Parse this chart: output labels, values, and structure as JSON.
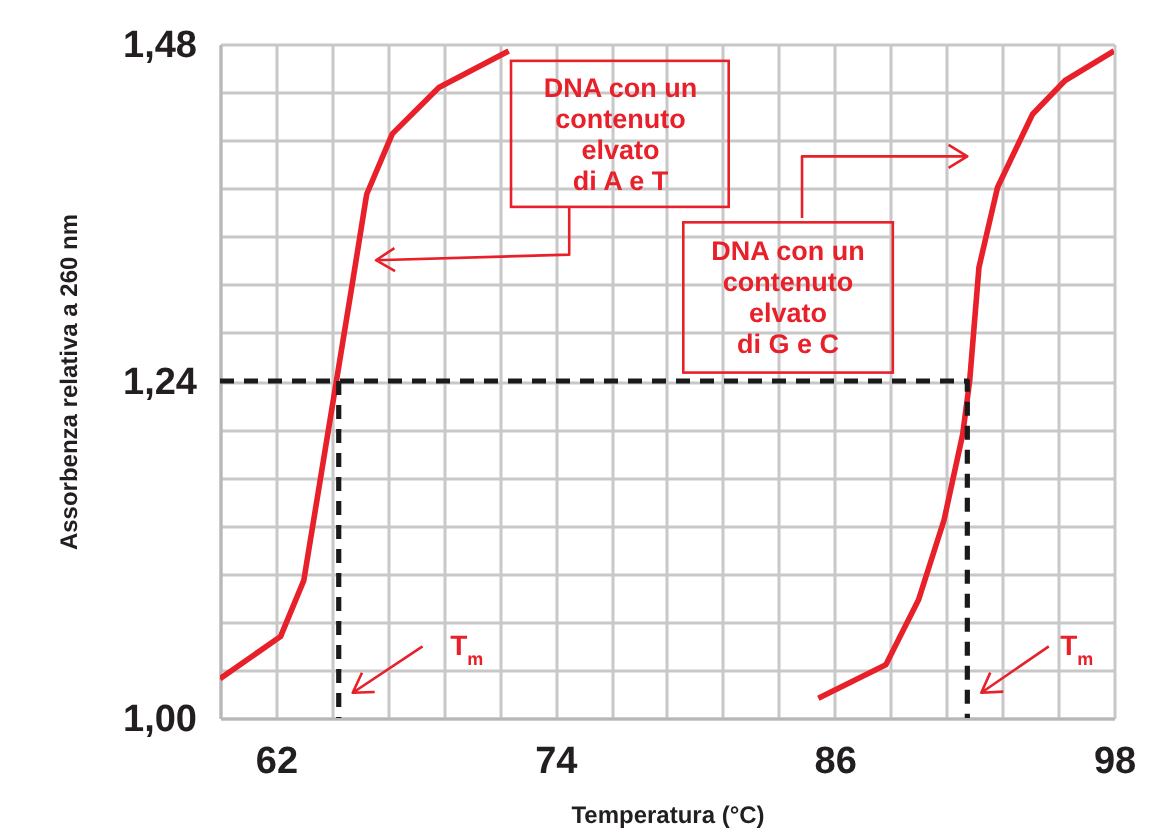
{
  "chart_data": {
    "type": "line",
    "xlabel": "Temperatura (°C)",
    "ylabel": "Assorbenza relativa a 260 nm",
    "xlim": [
      59.6,
      98
    ],
    "ylim": [
      1.0,
      1.48
    ],
    "xticks": [
      {
        "value": 59.6,
        "label": null
      },
      62,
      {
        "value": 64.4,
        "label": null
      },
      {
        "value": 66.8,
        "label": null
      },
      {
        "value": 69.2,
        "label": null
      },
      {
        "value": 71.6,
        "label": null
      },
      74,
      {
        "value": 76.4,
        "label": null
      },
      {
        "value": 78.8,
        "label": null
      },
      {
        "value": 81.2,
        "label": null
      },
      {
        "value": 83.6,
        "label": null
      },
      86,
      {
        "value": 88.4,
        "label": null
      },
      {
        "value": 90.8,
        "label": null
      },
      {
        "value": 93.2,
        "label": null
      },
      {
        "value": 95.6,
        "label": null
      },
      98
    ],
    "yticks": [
      {
        "value": 1.0,
        "label": "1,00"
      },
      {
        "value": 1.0343,
        "label": null
      },
      {
        "value": 1.0686,
        "label": null
      },
      {
        "value": 1.1029,
        "label": null
      },
      {
        "value": 1.1371,
        "label": null
      },
      {
        "value": 1.1714,
        "label": null
      },
      {
        "value": 1.2057,
        "label": null
      },
      {
        "value": 1.24,
        "label": "1,24"
      },
      {
        "value": 1.2743,
        "label": null
      },
      {
        "value": 1.3086,
        "label": null
      },
      {
        "value": 1.3429,
        "label": null
      },
      {
        "value": 1.3771,
        "label": null
      },
      {
        "value": 1.4114,
        "label": null
      },
      {
        "value": 1.4457,
        "label": null
      },
      {
        "value": 1.48,
        "label": "1,48"
      }
    ],
    "grid": true,
    "marker": "none",
    "series": [
      {
        "color": "#e8202a",
        "line_style": "solid",
        "x": [
          59.6,
          62.2,
          63.2,
          63.9,
          64.6,
          65.3,
          65.9,
          67.0,
          69.0,
          72.0
        ],
        "values": [
          1.028,
          1.058,
          1.098,
          1.169,
          1.24,
          1.311,
          1.373,
          1.416,
          1.449,
          1.475
        ]
      },
      {
        "color": "#e8202a",
        "line_style": "solid",
        "x": [
          85.3,
          88.2,
          89.6,
          90.7,
          91.5,
          91.8,
          92.2,
          93.0,
          94.5,
          95.9,
          98.0
        ],
        "values": [
          1.014,
          1.038,
          1.084,
          1.141,
          1.202,
          1.24,
          1.321,
          1.378,
          1.43,
          1.454,
          1.475
        ]
      },
      {
        "color": "#1a1a1a",
        "line_style": "dashed",
        "x": [
          59.6,
          91.7,
          91.7
        ],
        "values": [
          1.24,
          1.24,
          1.0
        ]
      },
      {
        "color": "#1a1a1a",
        "line_style": "dashed",
        "x": [
          64.7,
          64.7
        ],
        "values": [
          1.24,
          1.0
        ]
      }
    ],
    "annotations": [
      "DNA con un\ncontenuto\nelvato\ndi A e T",
      "DNA con un\ncontenuto\nelvato\ndi G e C",
      "T$_{m}$",
      "T$_{m}$"
    ]
  }
}
